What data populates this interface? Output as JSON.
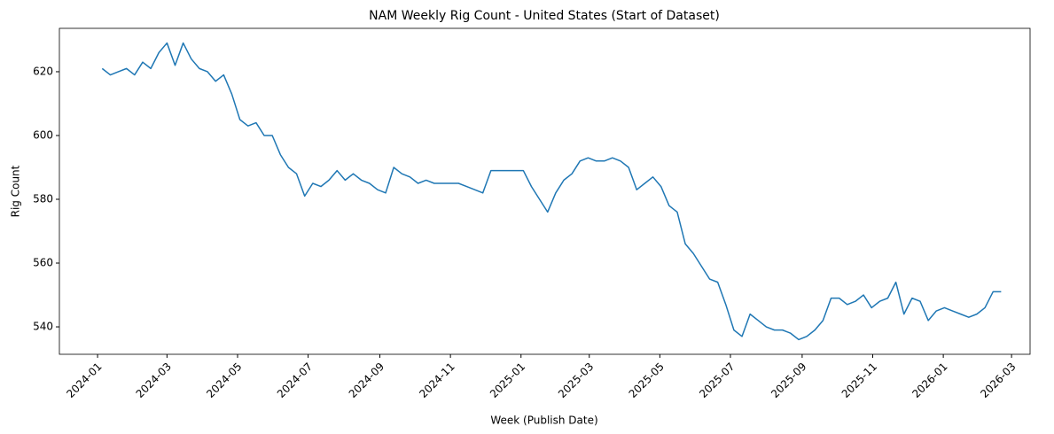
{
  "chart_data": {
    "type": "line",
    "title": "NAM Weekly Rig Count - United States (Start of Dataset)",
    "xlabel": "Week (Publish Date)",
    "ylabel": "Rig Count",
    "x": [
      "2024-01-05",
      "2024-01-12",
      "2024-01-19",
      "2024-01-26",
      "2024-02-02",
      "2024-02-09",
      "2024-02-16",
      "2024-02-23",
      "2024-03-01",
      "2024-03-08",
      "2024-03-15",
      "2024-03-22",
      "2024-03-29",
      "2024-04-05",
      "2024-04-12",
      "2024-04-19",
      "2024-04-26",
      "2024-05-03",
      "2024-05-10",
      "2024-05-17",
      "2024-05-24",
      "2024-05-31",
      "2024-06-07",
      "2024-06-14",
      "2024-06-21",
      "2024-06-28",
      "2024-07-05",
      "2024-07-12",
      "2024-07-19",
      "2024-07-26",
      "2024-08-02",
      "2024-08-09",
      "2024-08-16",
      "2024-08-23",
      "2024-08-30",
      "2024-09-06",
      "2024-09-13",
      "2024-09-20",
      "2024-09-27",
      "2024-10-04",
      "2024-10-11",
      "2024-10-18",
      "2024-10-25",
      "2024-11-01",
      "2024-11-08",
      "2024-11-15",
      "2024-11-22",
      "2024-11-29",
      "2024-12-06",
      "2024-12-13",
      "2024-12-20",
      "2024-12-27",
      "2025-01-03",
      "2025-01-10",
      "2025-01-17",
      "2025-01-24",
      "2025-01-31",
      "2025-02-07",
      "2025-02-14",
      "2025-02-21",
      "2025-02-28",
      "2025-03-07",
      "2025-03-14",
      "2025-03-21",
      "2025-03-28",
      "2025-04-04",
      "2025-04-11",
      "2025-04-18",
      "2025-04-25",
      "2025-05-02",
      "2025-05-09",
      "2025-05-16",
      "2025-05-23",
      "2025-05-30",
      "2025-06-06",
      "2025-06-13",
      "2025-06-20",
      "2025-06-27",
      "2025-07-04",
      "2025-07-11",
      "2025-07-18",
      "2025-07-25",
      "2025-08-01",
      "2025-08-08",
      "2025-08-15",
      "2025-08-22",
      "2025-08-29",
      "2025-09-05",
      "2025-09-12",
      "2025-09-19",
      "2025-09-26",
      "2025-10-03",
      "2025-10-10",
      "2025-10-17",
      "2025-10-24",
      "2025-10-31",
      "2025-11-07",
      "2025-11-14",
      "2025-11-21",
      "2025-11-28",
      "2025-12-05",
      "2025-12-12",
      "2025-12-19",
      "2025-12-26",
      "2026-01-02",
      "2026-01-09",
      "2026-01-16",
      "2026-01-23",
      "2026-01-30",
      "2026-02-06",
      "2026-02-13",
      "2026-02-20"
    ],
    "series": [
      {
        "name": "Rig Count",
        "color": "#1f77b4",
        "values": [
          621,
          619,
          620,
          621,
          619,
          623,
          621,
          626,
          629,
          622,
          629,
          624,
          621,
          620,
          617,
          619,
          613,
          605,
          603,
          604,
          600,
          600,
          594,
          590,
          588,
          581,
          585,
          584,
          586,
          589,
          586,
          588,
          586,
          585,
          583,
          582,
          590,
          588,
          587,
          585,
          586,
          585,
          585,
          585,
          585,
          584,
          583,
          582,
          589,
          589,
          589,
          589,
          589,
          584,
          580,
          576,
          582,
          586,
          588,
          592,
          593,
          592,
          592,
          593,
          592,
          590,
          583,
          585,
          587,
          584,
          578,
          576,
          566,
          563,
          559,
          555,
          554,
          547,
          539,
          537,
          544,
          542,
          540,
          539,
          539,
          538,
          536,
          537,
          539,
          542,
          549,
          549,
          547,
          548,
          550,
          546,
          548,
          549,
          554,
          544,
          549,
          548,
          542,
          545,
          546,
          545,
          544,
          543,
          544,
          546,
          551,
          551
        ]
      }
    ],
    "xlim": [
      "2023-11-29",
      "2026-03-17"
    ],
    "xticks": [
      {
        "value": "2024-01-01",
        "label": "2024-01"
      },
      {
        "value": "2024-03-01",
        "label": "2024-03"
      },
      {
        "value": "2024-05-01",
        "label": "2024-05"
      },
      {
        "value": "2024-07-01",
        "label": "2024-07"
      },
      {
        "value": "2024-09-01",
        "label": "2024-09"
      },
      {
        "value": "2024-11-01",
        "label": "2024-11"
      },
      {
        "value": "2025-01-01",
        "label": "2025-01"
      },
      {
        "value": "2025-03-01",
        "label": "2025-03"
      },
      {
        "value": "2025-05-01",
        "label": "2025-05"
      },
      {
        "value": "2025-07-01",
        "label": "2025-07"
      },
      {
        "value": "2025-09-01",
        "label": "2025-09"
      },
      {
        "value": "2025-11-01",
        "label": "2025-11"
      },
      {
        "value": "2026-01-01",
        "label": "2026-01"
      },
      {
        "value": "2026-03-01",
        "label": "2026-03"
      }
    ],
    "ylim": [
      531.4,
      633.6
    ],
    "yticks": [
      540,
      560,
      580,
      600,
      620
    ],
    "grid": false
  }
}
